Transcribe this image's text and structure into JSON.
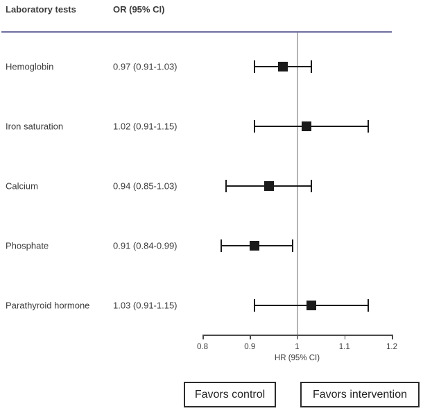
{
  "header": {
    "col1": "Laboratory tests",
    "col2": "OR (95% CI)"
  },
  "chart_data": {
    "type": "forest",
    "title": "",
    "xlabel": "HR (95% CI)",
    "xlim": [
      0.8,
      1.2
    ],
    "reference_line": 1,
    "ticks": [
      0.8,
      0.9,
      1,
      1.1,
      1.2
    ],
    "tick_labels": [
      "0.8",
      "0.9",
      "1",
      "1.1",
      "1.2"
    ],
    "rows": [
      {
        "label": "Hemoglobin",
        "value_text": "0.97 (0.91-1.03)",
        "or": 0.97,
        "lo": 0.91,
        "hi": 1.03
      },
      {
        "label": "Iron saturation",
        "value_text": "1.02 (0.91-1.15)",
        "or": 1.02,
        "lo": 0.91,
        "hi": 1.15
      },
      {
        "label": "Calcium",
        "value_text": "0.94 (0.85-1.03)",
        "or": 0.94,
        "lo": 0.85,
        "hi": 1.03
      },
      {
        "label": "Phosphate",
        "value_text": "0.91 (0.84-0.99)",
        "or": 0.91,
        "lo": 0.84,
        "hi": 0.99
      },
      {
        "label": "Parathyroid hormone",
        "value_text": "1.03 (0.91-1.15)",
        "or": 1.03,
        "lo": 0.91,
        "hi": 1.15
      }
    ]
  },
  "footer": {
    "left_box": "Favors control",
    "right_box": "Favors intervention"
  },
  "colors": {
    "rule": "#6e6e9e",
    "reference_line": "#b5b5b5",
    "marker": "#1a1a1a",
    "axis": "#4a4a4a",
    "text": "#3b3b3b"
  }
}
